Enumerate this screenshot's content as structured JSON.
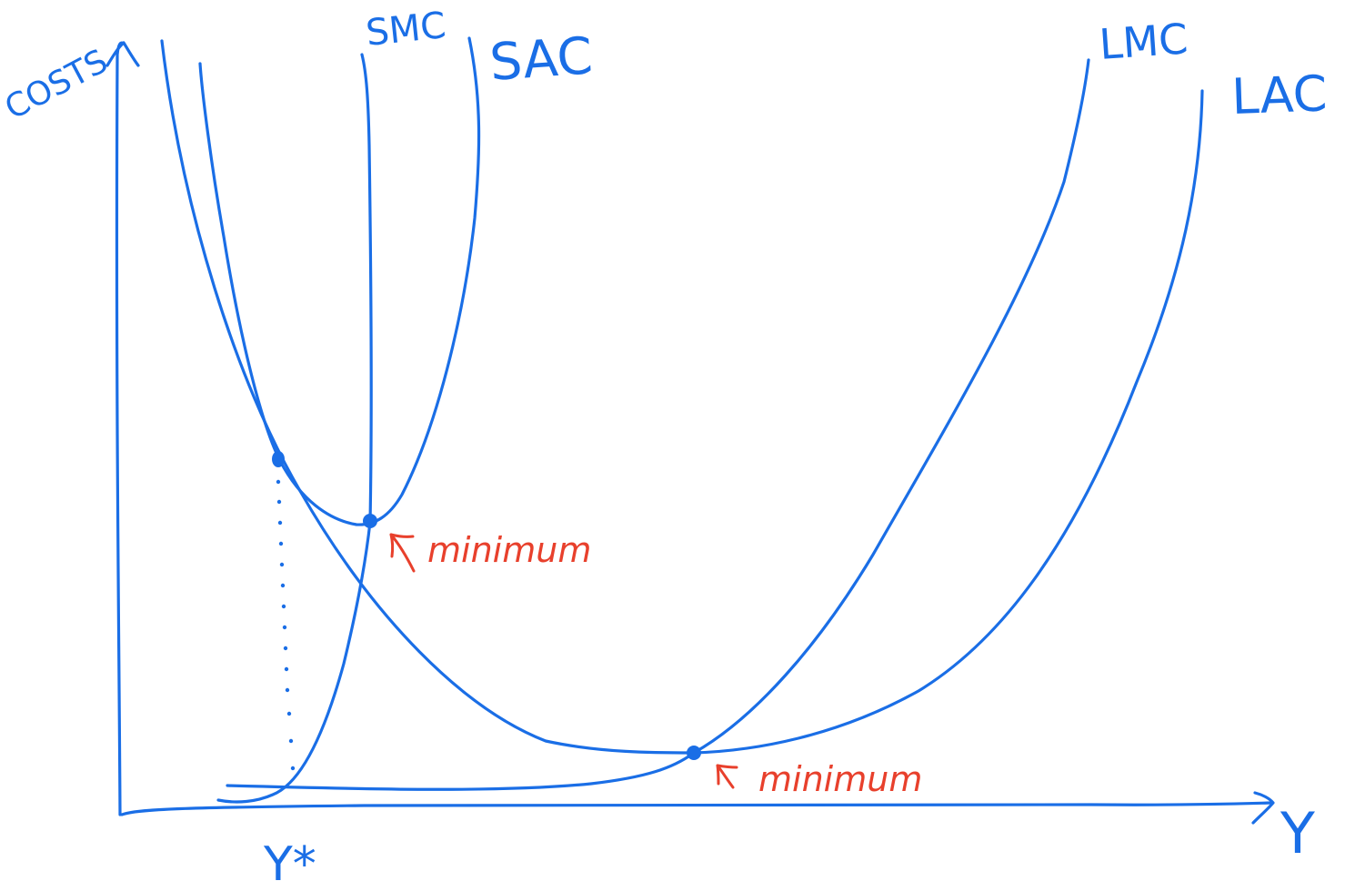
{
  "colors": {
    "curve_ink": "#1a6ee6",
    "annotation_ink": "#e8402c",
    "background": "#ffffff"
  },
  "axes": {
    "y_label": "COSTS",
    "x_label": "Y",
    "x_marker_label": "Y*"
  },
  "curves": {
    "smc_label": "SMC",
    "sac_label": "SAC",
    "lmc_label": "LMC",
    "lac_label": "LAC"
  },
  "annotations": {
    "sac_minimum": "minimum",
    "lac_minimum": "minimum"
  }
}
